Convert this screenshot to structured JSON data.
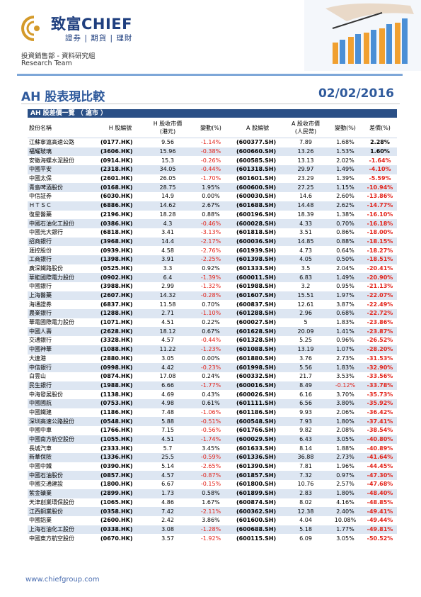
{
  "header": {
    "brand": "致富CHIEF",
    "brand_sub": "證券 | 期貨 | 理財",
    "dept": "投資銷售部 - 資料研究組",
    "team": "Research Team"
  },
  "report": {
    "title": "AH 股表現比較",
    "date": "02/02/2016"
  },
  "table": {
    "section_title": "AH 股差價一覽 （ 滬市 ）",
    "columns": [
      "股份名稱",
      "H 股編號",
      "H 股收市價\n(港元)",
      "變動(%)",
      "A 股編號",
      "A 股收市價\n(人民幣)",
      "變動(%)",
      "差價(%)"
    ],
    "rows": [
      [
        "江蘇寧滬高速公路",
        "(0177.HK)",
        "9.56",
        "-1.14%",
        "(600377.SH)",
        "7.89",
        "1.68%",
        "2.28%"
      ],
      [
        "福耀玻璃",
        "(3606.HK)",
        "15.96",
        "-0.38%",
        "(600660.SH)",
        "13.26",
        "1.53%",
        "1.60%"
      ],
      [
        "安徽海螺水泥股份",
        "(0914.HK)",
        "15.3",
        "-0.26%",
        "(600585.SH)",
        "13.13",
        "2.02%",
        "-1.64%"
      ],
      [
        "中國平安",
        "(2318.HK)",
        "34.05",
        "-0.44%",
        "(601318.SH)",
        "29.97",
        "1.49%",
        "-4.10%"
      ],
      [
        "中國太保",
        "(2601.HK)",
        "26.05",
        "-1.70%",
        "(601601.SH)",
        "23.29",
        "1.39%",
        "-5.59%"
      ],
      [
        "青島啤酒股份",
        "(0168.HK)",
        "28.75",
        "1.95%",
        "(600600.SH)",
        "27.25",
        "1.15%",
        "-10.94%"
      ],
      [
        "中信証券",
        "(6030.HK)",
        "14.9",
        "0.00%",
        "(600030.SH)",
        "14.6",
        "2.60%",
        "-13.86%"
      ],
      [
        "ＨＴＳＣ",
        "(6886.HK)",
        "14.62",
        "2.67%",
        "(601688.SH)",
        "14.48",
        "2.62%",
        "-14.77%"
      ],
      [
        "復星醫藥",
        "(2196.HK)",
        "18.28",
        "0.88%",
        "(600196.SH)",
        "18.39",
        "1.38%",
        "-16.10%"
      ],
      [
        "中國石油化工股份",
        "(0386.HK)",
        "4.3",
        "-0.46%",
        "(600028.SH)",
        "4.33",
        "0.70%",
        "-16.18%"
      ],
      [
        "中國光大銀行",
        "(6818.HK)",
        "3.41",
        "-3.13%",
        "(601818.SH)",
        "3.51",
        "0.86%",
        "-18.00%"
      ],
      [
        "招商銀行",
        "(3968.HK)",
        "14.4",
        "-2.17%",
        "(600036.SH)",
        "14.85",
        "0.88%",
        "-18.15%"
      ],
      [
        "滙控股份",
        "(0939.HK)",
        "4.58",
        "-2.76%",
        "(601939.SH)",
        "4.73",
        "0.64%",
        "-18.27%"
      ],
      [
        "工商銀行",
        "(1398.HK)",
        "3.91",
        "-2.25%",
        "(601398.SH)",
        "4.05",
        "0.50%",
        "-18.51%"
      ],
      [
        "廣深鐵路股份",
        "(0525.HK)",
        "3.3",
        "0.92%",
        "(601333.SH)",
        "3.5",
        "2.04%",
        "-20.41%"
      ],
      [
        "華能國際電力股份",
        "(0902.HK)",
        "6.4",
        "-1.39%",
        "(600011.SH)",
        "6.83",
        "1.49%",
        "-20.90%"
      ],
      [
        "中國銀行",
        "(3988.HK)",
        "2.99",
        "-1.32%",
        "(601988.SH)",
        "3.2",
        "0.95%",
        "-21.13%"
      ],
      [
        "上海醫藥",
        "(2607.HK)",
        "14.32",
        "-0.28%",
        "(601607.SH)",
        "15.51",
        "1.97%",
        "-22.07%"
      ],
      [
        "海通證券",
        "(6837.HK)",
        "11.58",
        "0.70%",
        "(600837.SH)",
        "12.61",
        "3.87%",
        "-22.49%"
      ],
      [
        "農業銀行",
        "(1288.HK)",
        "2.71",
        "-1.10%",
        "(601288.SH)",
        "2.96",
        "0.68%",
        "-22.72%"
      ],
      [
        "華電國際電力股份",
        "(1071.HK)",
        "4.51",
        "0.22%",
        "(600027.SH)",
        "5",
        "1.83%",
        "-23.86%"
      ],
      [
        "中國人壽",
        "(2628.HK)",
        "18.12",
        "0.67%",
        "(601628.SH)",
        "20.09",
        "1.41%",
        "-23.87%"
      ],
      [
        "交通銀行",
        "(3328.HK)",
        "4.57",
        "-0.44%",
        "(601328.SH)",
        "5.25",
        "0.96%",
        "-26.52%"
      ],
      [
        "中國神華",
        "(1088.HK)",
        "11.22",
        "-1.23%",
        "(601088.SH)",
        "13.19",
        "1.07%",
        "-28.20%"
      ],
      [
        "大連港",
        "(2880.HK)",
        "3.05",
        "0.00%",
        "(601880.SH)",
        "3.76",
        "2.73%",
        "-31.53%"
      ],
      [
        "中信銀行",
        "(0998.HK)",
        "4.42",
        "-0.23%",
        "(601998.SH)",
        "5.56",
        "1.83%",
        "-32.90%"
      ],
      [
        "白雲山",
        "(0874.HK)",
        "17.08",
        "0.24%",
        "(600332.SH)",
        "21.7",
        "3.53%",
        "-33.56%"
      ],
      [
        "民生銀行",
        "(1988.HK)",
        "6.66",
        "-1.77%",
        "(600016.SH)",
        "8.49",
        "-0.12%",
        "-33.78%"
      ],
      [
        "中海發展股份",
        "(1138.HK)",
        "4.69",
        "0.43%",
        "(600026.SH)",
        "6.16",
        "3.70%",
        "-35.73%"
      ],
      [
        "中國國航",
        "(0753.HK)",
        "4.98",
        "0.61%",
        "(601111.SH)",
        "6.56",
        "3.80%",
        "-35.92%"
      ],
      [
        "中國鐵建",
        "(1186.HK)",
        "7.48",
        "-1.06%",
        "(601186.SH)",
        "9.93",
        "2.06%",
        "-36.42%"
      ],
      [
        "深圳高速公路股份",
        "(0548.HK)",
        "5.88",
        "-0.51%",
        "(600548.SH)",
        "7.93",
        "1.80%",
        "-37.41%"
      ],
      [
        "中國中車",
        "(1766.HK)",
        "7.15",
        "-0.56%",
        "(601766.SH)",
        "9.82",
        "2.08%",
        "-38.54%"
      ],
      [
        "中國南方航空股份",
        "(1055.HK)",
        "4.51",
        "-1.74%",
        "(600029.SH)",
        "6.43",
        "3.05%",
        "-40.80%"
      ],
      [
        "長城汽車",
        "(2333.HK)",
        "5.7",
        "3.45%",
        "(601633.SH)",
        "8.14",
        "1.88%",
        "-40.89%"
      ],
      [
        "新華保險",
        "(1336.HK)",
        "25.5",
        "-0.59%",
        "(601336.SH)",
        "36.88",
        "2.73%",
        "-41.64%"
      ],
      [
        "中國中鐵",
        "(0390.HK)",
        "5.14",
        "-2.65%",
        "(601390.SH)",
        "7.81",
        "1.96%",
        "-44.45%"
      ],
      [
        "中國石油股份",
        "(0857.HK)",
        "4.57",
        "-0.87%",
        "(601857.SH)",
        "7.32",
        "0.97%",
        "-47.30%"
      ],
      [
        "中國交通建設",
        "(1800.HK)",
        "6.67",
        "-0.15%",
        "(601800.SH)",
        "10.76",
        "2.57%",
        "-47.68%"
      ],
      [
        "紫金礦業",
        "(2899.HK)",
        "1.73",
        "0.58%",
        "(601899.SH)",
        "2.83",
        "1.80%",
        "-48.40%"
      ],
      [
        "天津創業環保股份",
        "(1065.HK)",
        "4.86",
        "1.67%",
        "(600874.SH)",
        "8.02",
        "4.16%",
        "-48.85%"
      ],
      [
        "江西銅業股份",
        "(0358.HK)",
        "7.42",
        "-2.11%",
        "(600362.SH)",
        "12.38",
        "2.40%",
        "-49.41%"
      ],
      [
        "中國鋁業",
        "(2600.HK)",
        "2.42",
        "3.86%",
        "(601600.SH)",
        "4.04",
        "10.08%",
        "-49.44%"
      ],
      [
        "上海石油化工股份",
        "(0338.HK)",
        "3.08",
        "-1.28%",
        "(600688.SH)",
        "5.18",
        "1.77%",
        "-49.81%"
      ],
      [
        "中國東方航空股份",
        "(0670.HK)",
        "3.57",
        "-1.92%",
        "(600115.SH)",
        "6.09",
        "3.05%",
        "-50.52%"
      ]
    ]
  },
  "footer": {
    "url": "www.chiefgroup.com"
  },
  "colors": {
    "accent": "#2a4f86",
    "negative": "#e2231a",
    "alt_row": "#dde6f2",
    "title": "#2f5a9c"
  }
}
